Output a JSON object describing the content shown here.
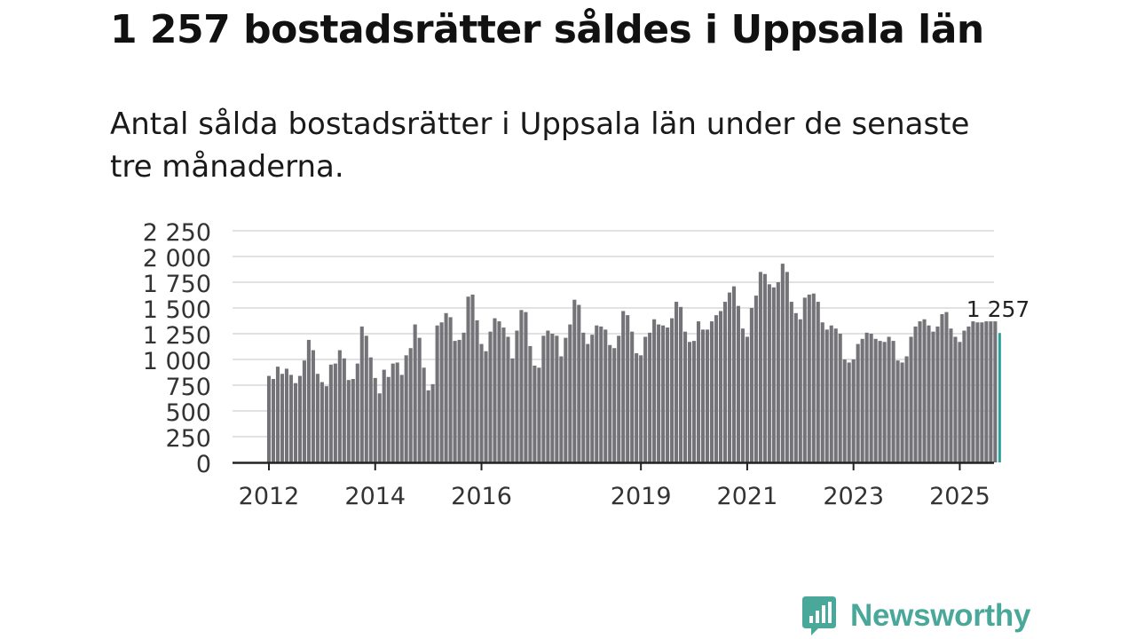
{
  "title": "1 257 bostadsrätter såldes i Uppsala län",
  "subtitle": "Antal sålda bostadsrätter i Uppsala län under de senaste tre månaderna.",
  "brand": {
    "name": "Newsworthy",
    "logo_icon": "bar-chart-speech-bubble-icon",
    "color": "#49a89a"
  },
  "colors": {
    "bar": "#737378",
    "highlight": "#2aa198",
    "grid": "#d9d9d9",
    "axis": "#222222"
  },
  "chart_data": {
    "type": "bar",
    "title": "1 257 bostadsrätter såldes i Uppsala län",
    "xlabel": "",
    "ylabel": "",
    "ylim": [
      0,
      2250
    ],
    "yticks": [
      0,
      250,
      500,
      750,
      1000,
      1250,
      1500,
      1750,
      2000,
      2250
    ],
    "ytick_labels": [
      "0",
      "250",
      "500",
      "750",
      "1 000",
      "1 250",
      "1 500",
      "1 750",
      "2 000",
      "2 250"
    ],
    "xtick_labels": [
      {
        "label": "2012",
        "index": 0
      },
      {
        "label": "2014",
        "index": 24
      },
      {
        "label": "2016",
        "index": 48
      },
      {
        "label": "2019",
        "index": 84
      },
      {
        "label": "2021",
        "index": 108
      },
      {
        "label": "2023",
        "index": 132
      },
      {
        "label": "2025",
        "index": 156
      }
    ],
    "last_label": "1 257",
    "highlight_last": true,
    "values": [
      840,
      810,
      930,
      860,
      910,
      850,
      770,
      840,
      990,
      1190,
      1090,
      860,
      780,
      740,
      950,
      960,
      1090,
      1010,
      800,
      810,
      960,
      1320,
      1230,
      1020,
      820,
      670,
      900,
      830,
      960,
      970,
      850,
      1040,
      1110,
      1340,
      1210,
      920,
      700,
      760,
      1330,
      1360,
      1450,
      1410,
      1180,
      1190,
      1260,
      1610,
      1630,
      1380,
      1150,
      1080,
      1270,
      1400,
      1370,
      1310,
      1220,
      1010,
      1280,
      1480,
      1460,
      1130,
      940,
      920,
      1230,
      1280,
      1250,
      1230,
      1030,
      1210,
      1340,
      1580,
      1530,
      1260,
      1150,
      1240,
      1330,
      1320,
      1290,
      1140,
      1110,
      1230,
      1470,
      1430,
      1270,
      1060,
      1040,
      1220,
      1260,
      1390,
      1340,
      1330,
      1310,
      1400,
      1560,
      1510,
      1270,
      1170,
      1180,
      1370,
      1290,
      1290,
      1370,
      1430,
      1470,
      1560,
      1650,
      1710,
      1520,
      1300,
      1220,
      1500,
      1620,
      1850,
      1830,
      1730,
      1700,
      1750,
      1930,
      1850,
      1560,
      1450,
      1390,
      1600,
      1630,
      1640,
      1560,
      1360,
      1290,
      1330,
      1300,
      1250,
      1000,
      970,
      1000,
      1150,
      1200,
      1260,
      1250,
      1200,
      1180,
      1170,
      1220,
      1180,
      990,
      970,
      1030,
      1220,
      1320,
      1370,
      1390,
      1330,
      1270,
      1320,
      1440,
      1460,
      1300,
      1220,
      1170,
      1280,
      1320,
      1370,
      1360,
      1360,
      1370,
      1370,
      1370,
      1257
    ]
  }
}
